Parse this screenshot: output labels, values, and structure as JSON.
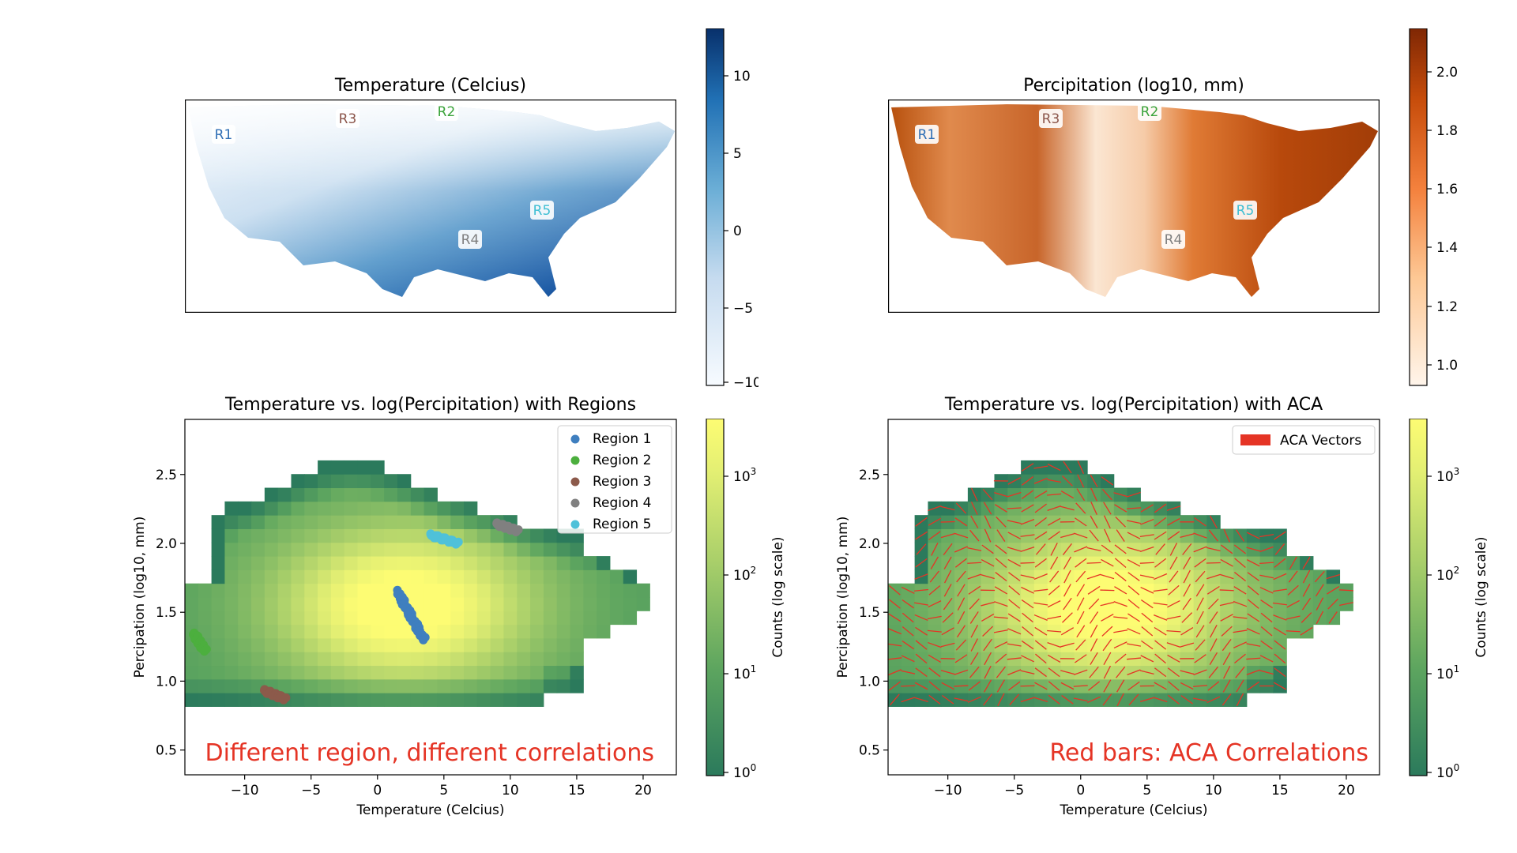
{
  "panels": {
    "temp_map": {
      "title": "Temperature (Celcius)",
      "colorbar_ticks": [
        "10",
        "5",
        "0",
        "−5",
        "−10"
      ],
      "region_labels": [
        {
          "text": "R1",
          "color": "#2f6eb5"
        },
        {
          "text": "R3",
          "color": "#8c564b"
        },
        {
          "text": "R2",
          "color": "#3aa33a"
        },
        {
          "text": "R5",
          "color": "#3fbfd4"
        },
        {
          "text": "R4",
          "color": "#7f7f7f"
        }
      ]
    },
    "precip_map": {
      "title": "Percipitation (log10, mm)",
      "colorbar_ticks": [
        "2.0",
        "1.8",
        "1.6",
        "1.4",
        "1.2",
        "1.0"
      ],
      "region_labels": [
        {
          "text": "R1",
          "color": "#2f6eb5"
        },
        {
          "text": "R3",
          "color": "#8c564b"
        },
        {
          "text": "R2",
          "color": "#3aa33a"
        },
        {
          "text": "R5",
          "color": "#3fbfd4"
        },
        {
          "text": "R4",
          "color": "#7f7f7f"
        }
      ]
    },
    "hist_regions": {
      "title": "Temperature vs. log(Percipitation) with Regions",
      "xlabel": "Temperature (Celcius)",
      "ylabel": "Percipation (log10, mm)",
      "annotation": "Different region, different correlations",
      "colorbar_label": "Counts (log scale)"
    },
    "hist_aca": {
      "title": "Temperature vs. log(Percipitation) with ACA",
      "xlabel": "Temperature (Celcius)",
      "ylabel": "Percipation (log10, mm)",
      "annotation": "Red bars: ACA Correlations",
      "colorbar_label": "Counts (log scale)"
    }
  },
  "chart_data": [
    {
      "type": "heatmap",
      "title": "Temperature (Celcius)",
      "colorbar": {
        "range": [
          -10,
          13
        ],
        "ticks": [
          10,
          5,
          0,
          -5,
          -10
        ],
        "colormap": "Blues"
      }
    },
    {
      "type": "heatmap",
      "title": "Percipitation (log10, mm)",
      "colorbar": {
        "range": [
          0.95,
          2.15
        ],
        "ticks": [
          2.0,
          1.8,
          1.6,
          1.4,
          1.2,
          1.0
        ],
        "colormap": "Oranges"
      }
    },
    {
      "type": "heatmap",
      "title": "Temperature vs. log(Percipitation) with Regions",
      "xlabel": "Temperature (Celcius)",
      "ylabel": "Percipation (log10, mm)",
      "xlim": [
        -14.5,
        22.5
      ],
      "ylim": [
        0.32,
        2.9
      ],
      "xticks": [
        -10,
        -5,
        0,
        5,
        10,
        15,
        20
      ],
      "yticks": [
        0.5,
        1.0,
        1.5,
        2.0,
        2.5
      ],
      "colorbar": {
        "label": "Counts (log scale)",
        "scale": "log",
        "ticks": [
          "10^0",
          "10^1",
          "10^2",
          "10^3"
        ]
      },
      "legend": {
        "placement": "top-right"
      },
      "series": [
        {
          "name": "Region 1",
          "color": "#3f7fbf",
          "x_range": [
            1.5,
            3.5
          ],
          "y_range": [
            1.3,
            1.65
          ]
        },
        {
          "name": "Region 2",
          "color": "#4caf3e",
          "x_range": [
            -13.8,
            -13.0
          ],
          "y_range": [
            1.22,
            1.34
          ]
        },
        {
          "name": "Region 3",
          "color": "#8c5a4b",
          "x_range": [
            -8.5,
            -7.0
          ],
          "y_range": [
            0.87,
            0.93
          ]
        },
        {
          "name": "Region 4",
          "color": "#808080",
          "x_range": [
            9.0,
            10.5
          ],
          "y_range": [
            2.09,
            2.14
          ]
        },
        {
          "name": "Region 5",
          "color": "#4fc1d9",
          "x_range": [
            4.0,
            6.0
          ],
          "y_range": [
            2.0,
            2.06
          ]
        }
      ]
    },
    {
      "type": "heatmap",
      "title": "Temperature vs. log(Percipitation) with ACA",
      "xlabel": "Temperature (Celcius)",
      "ylabel": "Percipation (log10, mm)",
      "xlim": [
        -14.5,
        22.5
      ],
      "ylim": [
        0.32,
        2.9
      ],
      "xticks": [
        -10,
        -5,
        0,
        5,
        10,
        15,
        20
      ],
      "yticks": [
        0.5,
        1.0,
        1.5,
        2.0,
        2.5
      ],
      "colorbar": {
        "label": "Counts (log scale)",
        "scale": "log",
        "ticks": [
          "10^0",
          "10^1",
          "10^2",
          "10^3"
        ]
      },
      "legend": {
        "placement": "top-right",
        "entries": [
          "ACA Vectors"
        ]
      },
      "overlay_color": "#e53425"
    }
  ]
}
